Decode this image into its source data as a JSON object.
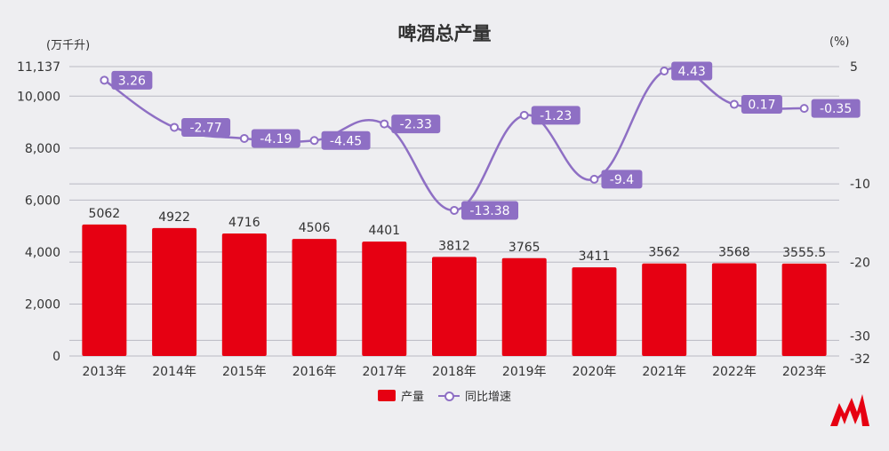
{
  "header": {
    "title": "啤酒总产量",
    "left_unit": "(万千升)",
    "right_unit": "(%)"
  },
  "legend": {
    "bar_label": "产量",
    "line_label": "同比增速"
  },
  "colors": {
    "bar": "#e60012",
    "line": "#8e6fc4",
    "label_bg": "#8e6fc4",
    "grid": "#b9b9c3",
    "text": "#333333"
  },
  "logo": {
    "icon": "red-m-brand-logo-icon"
  },
  "chart_data": {
    "type": "bar",
    "categories": [
      "2013年",
      "2014年",
      "2015年",
      "2016年",
      "2017年",
      "2018年",
      "2019年",
      "2020年",
      "2021年",
      "2022年",
      "2023年"
    ],
    "series": [
      {
        "name": "产量",
        "type": "bar",
        "axis": "left",
        "values": [
          5062,
          4922,
          4716,
          4506,
          4401,
          3812,
          3765,
          3411,
          3562,
          3568,
          3555.5
        ],
        "labels": [
          "5062",
          "4922",
          "4716",
          "4506",
          "4401",
          "3812",
          "3765",
          "3411",
          "3562",
          "3568",
          "3555.5"
        ]
      },
      {
        "name": "同比增速",
        "type": "line",
        "axis": "right",
        "values": [
          3.26,
          -2.77,
          -4.19,
          -4.45,
          -2.33,
          -13.38,
          -1.23,
          -9.4,
          4.43,
          0.17,
          -0.35
        ],
        "labels": [
          "3.26",
          "-2.77",
          "-4.19",
          "-4.45",
          "-2.33",
          "-13.38",
          "-1.23",
          "-9.4",
          "4.43",
          "0.17",
          "-0.35"
        ]
      }
    ],
    "y_left": {
      "lim": [
        0,
        11137
      ],
      "ticks": [
        0,
        2000,
        4000,
        6000,
        8000,
        10000,
        11137
      ],
      "tick_labels": [
        "0",
        "2,000",
        "4,000",
        "6,000",
        "8,000",
        "10,000",
        "11,137"
      ]
    },
    "y_right": {
      "lim": [
        -32,
        5
      ],
      "ticks": [
        -32,
        -30,
        -20,
        -10,
        5
      ],
      "tick_labels": [
        "-32",
        "-30",
        "-20",
        "-10",
        "5"
      ]
    },
    "grid": true,
    "legend_position": "bottom-center"
  }
}
